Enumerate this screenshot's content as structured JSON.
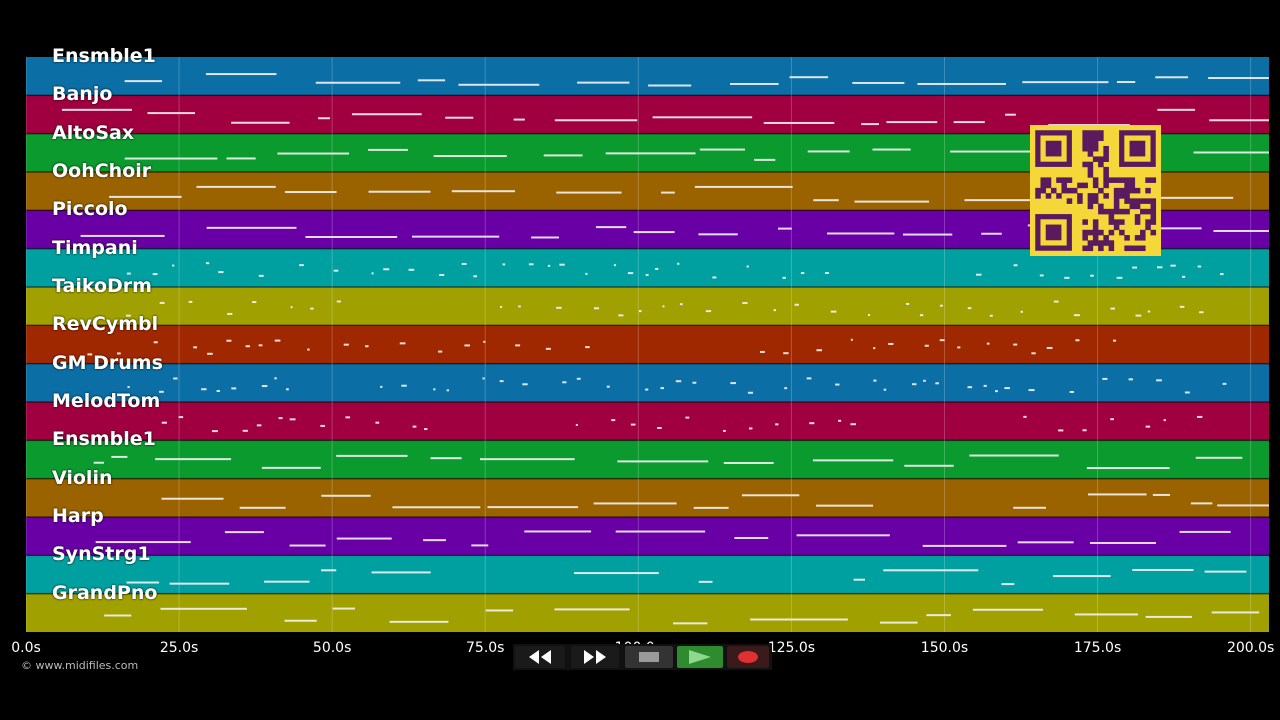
{
  "tracks": [
    {
      "name": "Ensmble1",
      "color": "#0b6ea5"
    },
    {
      "name": "Banjo",
      "color": "#a0003f"
    },
    {
      "name": "AltoSax",
      "color": "#0b9a2e"
    },
    {
      "name": "OohChoir",
      "color": "#9a6300"
    },
    {
      "name": "Piccolo",
      "color": "#6800a5"
    },
    {
      "name": "Timpani",
      "color": "#00a0a0"
    },
    {
      "name": "TaikoDrm",
      "color": "#a0a000"
    },
    {
      "name": "RevCymbl",
      "color": "#a02800"
    },
    {
      "name": "GM Drums",
      "color": "#0b6ea5"
    },
    {
      "name": "MelodTom",
      "color": "#a0003f"
    },
    {
      "name": "Ensmble1",
      "color": "#0b9a2e"
    },
    {
      "name": "Violin",
      "color": "#9a6300"
    },
    {
      "name": "Harp",
      "color": "#6800a5"
    },
    {
      "name": "SynStrg1",
      "color": "#00a0a0"
    },
    {
      "name": "GrandPno",
      "color": "#a0a000"
    }
  ],
  "timeline": {
    "start": 0,
    "end": 203,
    "ticks": [
      {
        "value": 0,
        "label": "0.0s"
      },
      {
        "value": 25,
        "label": "25.0s"
      },
      {
        "value": 50,
        "label": "50.0s"
      },
      {
        "value": 75,
        "label": "75.0s"
      },
      {
        "value": 100,
        "label": "100.0s"
      },
      {
        "value": 125,
        "label": "125.0s"
      },
      {
        "value": 150,
        "label": "150.0s"
      },
      {
        "value": 175,
        "label": "175.0s"
      },
      {
        "value": 200,
        "label": "200.0s"
      }
    ]
  },
  "copyright": "© www.midifiles.com",
  "transport": {
    "rewind_icon": "rewind-icon",
    "fast_forward_icon": "fast-forward-icon",
    "stop_icon": "stop-icon",
    "play_icon": "play-icon",
    "record_icon": "record-icon",
    "play_color": "#2e8b2e",
    "record_color": "#e03030"
  },
  "qr": {
    "color": "#5a1b5e",
    "background": "#f6d73a"
  }
}
